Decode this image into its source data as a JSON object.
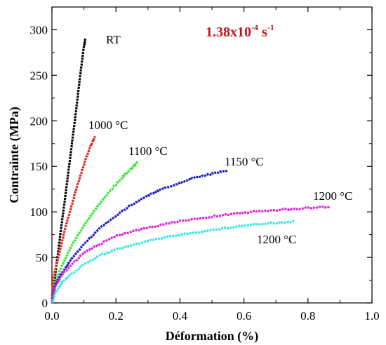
{
  "chart_data": {
    "type": "line",
    "xlabel": "Déformation (%)",
    "ylabel": "Contrainte (MPa)",
    "xlim": [
      0,
      1.0
    ],
    "ylim": [
      0,
      325
    ],
    "x_ticks": [
      "0.0",
      "0.2",
      "0.4",
      "0.6",
      "0.8",
      "1.0"
    ],
    "y_ticks": [
      "0",
      "50",
      "100",
      "150",
      "200",
      "250",
      "300"
    ],
    "x_tick_values": [
      0,
      0.2,
      0.4,
      0.6,
      0.8,
      1.0
    ],
    "y_tick_values": [
      0,
      50,
      100,
      150,
      200,
      250,
      300
    ],
    "grid": false,
    "annotation": {
      "base": "1.38x10",
      "exponent": "-4",
      "unit": " s",
      "unit_exponent": "-1",
      "color": "#c0141e"
    },
    "series": [
      {
        "name": "RT",
        "color": "#000000",
        "points": [
          [
            0,
            0
          ],
          [
            0.01,
            30
          ],
          [
            0.02,
            58
          ],
          [
            0.03,
            85
          ],
          [
            0.04,
            112
          ],
          [
            0.05,
            140
          ],
          [
            0.06,
            168
          ],
          [
            0.07,
            196
          ],
          [
            0.08,
            225
          ],
          [
            0.09,
            255
          ],
          [
            0.1,
            282
          ],
          [
            0.105,
            290
          ]
        ]
      },
      {
        "name": "1000 °C",
        "color": "#e8201a",
        "points": [
          [
            0,
            5
          ],
          [
            0.005,
            28
          ],
          [
            0.02,
            50
          ],
          [
            0.04,
            80
          ],
          [
            0.06,
            105
          ],
          [
            0.08,
            130
          ],
          [
            0.1,
            152
          ],
          [
            0.12,
            172
          ],
          [
            0.135,
            183
          ]
        ]
      },
      {
        "name": "1100 °C",
        "color": "#2ee82e",
        "points": [
          [
            0,
            0
          ],
          [
            0.01,
            22
          ],
          [
            0.03,
            40
          ],
          [
            0.06,
            62
          ],
          [
            0.1,
            85
          ],
          [
            0.14,
            105
          ],
          [
            0.18,
            122
          ],
          [
            0.22,
            138
          ],
          [
            0.25,
            148
          ],
          [
            0.27,
            156
          ]
        ]
      },
      {
        "name": "1150 °C",
        "color": "#1a1ac8",
        "points": [
          [
            0,
            0
          ],
          [
            0.01,
            20
          ],
          [
            0.03,
            32
          ],
          [
            0.06,
            48
          ],
          [
            0.1,
            65
          ],
          [
            0.15,
            82
          ],
          [
            0.2,
            96
          ],
          [
            0.25,
            108
          ],
          [
            0.3,
            118
          ],
          [
            0.35,
            126
          ],
          [
            0.4,
            132
          ],
          [
            0.45,
            138
          ],
          [
            0.5,
            142
          ],
          [
            0.55,
            145
          ]
        ]
      },
      {
        "name": "1200 °C",
        "color": "#e020e0",
        "points": [
          [
            0,
            0
          ],
          [
            0.01,
            18
          ],
          [
            0.03,
            30
          ],
          [
            0.06,
            42
          ],
          [
            0.1,
            55
          ],
          [
            0.15,
            65
          ],
          [
            0.2,
            73
          ],
          [
            0.3,
            83
          ],
          [
            0.4,
            90
          ],
          [
            0.5,
            95
          ],
          [
            0.6,
            99
          ],
          [
            0.7,
            102
          ],
          [
            0.8,
            104
          ],
          [
            0.87,
            106
          ]
        ]
      },
      {
        "name": "1200 °C",
        "color": "#2ee8e8",
        "points": [
          [
            0,
            0
          ],
          [
            0.01,
            10
          ],
          [
            0.03,
            22
          ],
          [
            0.06,
            32
          ],
          [
            0.1,
            42
          ],
          [
            0.15,
            52
          ],
          [
            0.2,
            59
          ],
          [
            0.3,
            68
          ],
          [
            0.4,
            75
          ],
          [
            0.5,
            80
          ],
          [
            0.6,
            85
          ],
          [
            0.7,
            88
          ],
          [
            0.76,
            90
          ]
        ]
      }
    ]
  }
}
